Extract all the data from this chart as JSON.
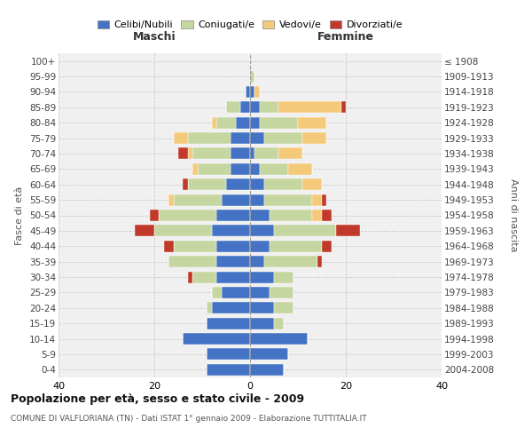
{
  "age_groups": [
    "0-4",
    "5-9",
    "10-14",
    "15-19",
    "20-24",
    "25-29",
    "30-34",
    "35-39",
    "40-44",
    "45-49",
    "50-54",
    "55-59",
    "60-64",
    "65-69",
    "70-74",
    "75-79",
    "80-84",
    "85-89",
    "90-94",
    "95-99",
    "100+"
  ],
  "birth_years": [
    "2004-2008",
    "1999-2003",
    "1994-1998",
    "1989-1993",
    "1984-1988",
    "1979-1983",
    "1974-1978",
    "1969-1973",
    "1964-1968",
    "1959-1963",
    "1954-1958",
    "1949-1953",
    "1944-1948",
    "1939-1943",
    "1934-1938",
    "1929-1933",
    "1924-1928",
    "1919-1923",
    "1914-1918",
    "1909-1913",
    "≤ 1908"
  ],
  "colors": {
    "celibe": "#4472c4",
    "coniugato": "#c5d6a0",
    "vedovo": "#f5c97a",
    "divorziato": "#c0392b"
  },
  "maschi": {
    "celibe": [
      9,
      9,
      14,
      9,
      8,
      6,
      7,
      7,
      7,
      8,
      7,
      6,
      5,
      4,
      4,
      4,
      3,
      2,
      1,
      0,
      0
    ],
    "coniugato": [
      0,
      0,
      0,
      0,
      1,
      2,
      5,
      10,
      9,
      12,
      12,
      10,
      8,
      7,
      8,
      9,
      4,
      3,
      0,
      0,
      0
    ],
    "vedovo": [
      0,
      0,
      0,
      0,
      0,
      0,
      0,
      0,
      0,
      0,
      0,
      1,
      0,
      1,
      1,
      3,
      1,
      0,
      0,
      0,
      0
    ],
    "divorziato": [
      0,
      0,
      0,
      0,
      0,
      0,
      1,
      0,
      2,
      4,
      2,
      0,
      1,
      0,
      2,
      0,
      0,
      0,
      0,
      0,
      0
    ]
  },
  "femmine": {
    "celibe": [
      7,
      8,
      12,
      5,
      5,
      4,
      5,
      3,
      4,
      5,
      4,
      3,
      3,
      2,
      1,
      3,
      2,
      2,
      1,
      0,
      0
    ],
    "coniugato": [
      0,
      0,
      0,
      2,
      4,
      5,
      4,
      11,
      11,
      13,
      9,
      10,
      8,
      6,
      5,
      8,
      8,
      4,
      0,
      1,
      0
    ],
    "vedovo": [
      0,
      0,
      0,
      0,
      0,
      0,
      0,
      0,
      0,
      0,
      2,
      2,
      4,
      5,
      5,
      5,
      6,
      13,
      1,
      0,
      0
    ],
    "divorziato": [
      0,
      0,
      0,
      0,
      0,
      0,
      0,
      1,
      2,
      5,
      2,
      1,
      0,
      0,
      0,
      0,
      0,
      1,
      0,
      0,
      0
    ]
  },
  "title": "Popolazione per età, sesso e stato civile - 2009",
  "subtitle": "COMUNE DI VALFLORIANA (TN) - Dati ISTAT 1° gennaio 2009 - Elaborazione TUTTITALIA.IT",
  "xlabel_left": "Maschi",
  "xlabel_right": "Femmine",
  "ylabel_left": "Fasce di età",
  "ylabel_right": "Anni di nascita",
  "xlim": 40,
  "bg_color": "#f0f0f0",
  "grid_color": "#cccccc",
  "legend_labels": [
    "Celibi/Nubili",
    "Coniugati/e",
    "Vedovi/e",
    "Divorziati/e"
  ]
}
